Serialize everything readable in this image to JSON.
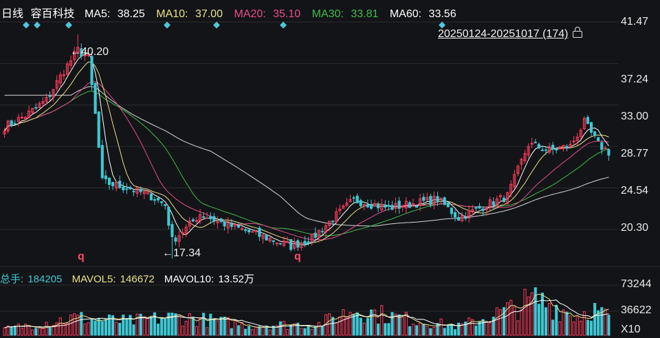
{
  "header": {
    "period": "日线",
    "stock_name": "容百科技",
    "ma5_label": "MA5:",
    "ma5_value": "38.25",
    "ma10_label": "MA10:",
    "ma10_value": "37.00",
    "ma20_label": "MA20:",
    "ma20_value": "35.10",
    "ma30_label": "MA30:",
    "ma30_value": "33.81",
    "ma60_label": "MA60:",
    "ma60_value": "33.56"
  },
  "range_label": "20250124-20251017 (174)",
  "annotations": {
    "high": "←40.20",
    "low": "←17.34",
    "marker": "q"
  },
  "volume_header": {
    "total_label": "总手:",
    "total_value": "184205",
    "mavol5_label": "MAVOL5:",
    "mavol5_value": "146672",
    "mavol10_label": "MAVOL10:",
    "mavol10_value": "13.52万"
  },
  "volume_axis": {
    "top": "73244",
    "mid": "36622",
    "unit": "X10"
  },
  "colors": {
    "background": "#131417",
    "up": "#ff3c5c",
    "down": "#3fc7d3",
    "ma5": "#ffffff",
    "ma10": "#e8e38a",
    "ma20": "#e64d8f",
    "ma30": "#3dbd4c",
    "ma60": "#d8d8d8",
    "header_text": "#ffffff"
  },
  "chart_data": {
    "type": "candlestick",
    "title": "容百科技 日线",
    "y_ticks": [
      41.47,
      37.24,
      33.0,
      28.77,
      24.54,
      20.3
    ],
    "ylim": [
      16.5,
      42.8
    ],
    "high": 40.2,
    "low": 17.34,
    "period_count": 174,
    "close_points": [
      {
        "i": 0,
        "v": 30.8
      },
      {
        "i": 6,
        "v": 31.9
      },
      {
        "i": 12,
        "v": 33.5
      },
      {
        "i": 17,
        "v": 36.5
      },
      {
        "i": 21,
        "v": 38.6
      },
      {
        "i": 24,
        "v": 37.8
      },
      {
        "i": 26,
        "v": 32.0
      },
      {
        "i": 28,
        "v": 25.2
      },
      {
        "i": 32,
        "v": 24.8
      },
      {
        "i": 36,
        "v": 24.5
      },
      {
        "i": 42,
        "v": 23.7
      },
      {
        "i": 46,
        "v": 22.8
      },
      {
        "i": 48,
        "v": 19.2
      },
      {
        "i": 52,
        "v": 20.4
      },
      {
        "i": 56,
        "v": 21.9
      },
      {
        "i": 62,
        "v": 21.0
      },
      {
        "i": 72,
        "v": 19.8
      },
      {
        "i": 82,
        "v": 18.6
      },
      {
        "i": 88,
        "v": 19.4
      },
      {
        "i": 94,
        "v": 21.4
      },
      {
        "i": 100,
        "v": 23.3
      },
      {
        "i": 110,
        "v": 22.5
      },
      {
        "i": 118,
        "v": 23.0
      },
      {
        "i": 124,
        "v": 23.4
      },
      {
        "i": 130,
        "v": 21.5
      },
      {
        "i": 138,
        "v": 22.8
      },
      {
        "i": 144,
        "v": 23.7
      },
      {
        "i": 150,
        "v": 29.0
      },
      {
        "i": 156,
        "v": 28.4
      },
      {
        "i": 162,
        "v": 28.8
      },
      {
        "i": 166,
        "v": 31.2
      },
      {
        "i": 170,
        "v": 29.0
      },
      {
        "i": 173,
        "v": 28.2
      }
    ],
    "volume_points": [
      {
        "i": 0,
        "v": 10000
      },
      {
        "i": 20,
        "v": 28000
      },
      {
        "i": 35,
        "v": 22000
      },
      {
        "i": 50,
        "v": 30000
      },
      {
        "i": 70,
        "v": 16000
      },
      {
        "i": 90,
        "v": 18000
      },
      {
        "i": 100,
        "v": 42000
      },
      {
        "i": 115,
        "v": 26000
      },
      {
        "i": 130,
        "v": 14000
      },
      {
        "i": 145,
        "v": 42000
      },
      {
        "i": 152,
        "v": 58000
      },
      {
        "i": 158,
        "v": 46000
      },
      {
        "i": 164,
        "v": 30000
      },
      {
        "i": 168,
        "v": 44000
      },
      {
        "i": 173,
        "v": 28000
      }
    ]
  }
}
